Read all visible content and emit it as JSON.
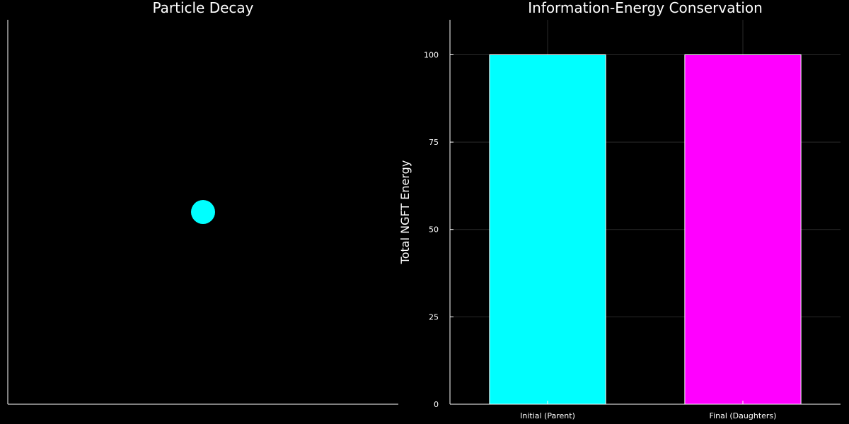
{
  "chart_data": [
    {
      "type": "scatter",
      "title": "Particle Decay",
      "points": [
        {
          "x": 0,
          "y": 0,
          "color": "#00ffff"
        }
      ],
      "axes_visible": false,
      "grid": false
    },
    {
      "type": "bar",
      "title": "Information-Energy Conservation",
      "categories": [
        "Initial (Parent)",
        "Final (Daughters)"
      ],
      "values": [
        100,
        100
      ],
      "colors": [
        "#00ffff",
        "#ff00ff"
      ],
      "ylabel": "Total NGFT Energy",
      "ylim": [
        0,
        110
      ],
      "yticks": [
        "0",
        "25",
        "50",
        "75",
        "100"
      ],
      "grid": true
    }
  ]
}
